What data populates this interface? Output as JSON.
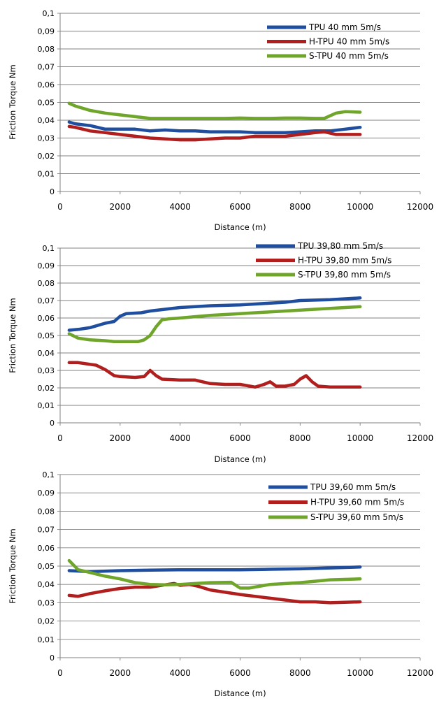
{
  "chart_data": [
    {
      "type": "line",
      "xlabel": "Distance (m)",
      "ylabel": "Friction Torque Nm",
      "xlim": [
        0,
        12000
      ],
      "ylim": [
        0,
        0.1
      ],
      "xticks": [
        0,
        2000,
        4000,
        6000,
        8000,
        10000,
        12000
      ],
      "xtick_labels": [
        "0",
        "2000",
        "4000",
        "6000",
        "8000",
        "10000",
        "12000"
      ],
      "yticks": [
        0,
        0.01,
        0.02,
        0.03,
        0.04,
        0.05,
        0.06,
        0.07,
        0.08,
        0.09,
        0.1
      ],
      "ytick_labels": [
        "0",
        "0,01",
        "0,02",
        "0,03",
        "0,04",
        "0,05",
        "0,06",
        "0,07",
        "0,08",
        "0,09",
        "0,1"
      ],
      "grid": "horizontal",
      "legend": "top-right",
      "series": [
        {
          "name": "TPU 40 mm 5m/s",
          "color": "#1f4e9e",
          "x": [
            300,
            500,
            1000,
            1500,
            2000,
            2500,
            3000,
            3500,
            4000,
            4500,
            5000,
            5500,
            6000,
            6500,
            7000,
            7500,
            8000,
            8500,
            9000,
            9500,
            10000
          ],
          "y": [
            0.039,
            0.038,
            0.037,
            0.035,
            0.035,
            0.035,
            0.034,
            0.0345,
            0.034,
            0.034,
            0.0335,
            0.0335,
            0.0335,
            0.033,
            0.033,
            0.033,
            0.0335,
            0.034,
            0.034,
            0.035,
            0.036
          ]
        },
        {
          "name": "H-TPU 40 mm 5m/s",
          "color": "#b01e1e",
          "x": [
            300,
            500,
            1000,
            1500,
            2000,
            2500,
            3000,
            3500,
            4000,
            4500,
            5000,
            5500,
            6000,
            6500,
            7000,
            7500,
            8000,
            8500,
            8800,
            9200,
            9600,
            10000
          ],
          "y": [
            0.0365,
            0.036,
            0.034,
            0.033,
            0.032,
            0.031,
            0.03,
            0.0295,
            0.029,
            0.029,
            0.0295,
            0.03,
            0.03,
            0.031,
            0.031,
            0.031,
            0.032,
            0.033,
            0.0335,
            0.032,
            0.032,
            0.032
          ]
        },
        {
          "name": "S-TPU 40 mm 5m/s",
          "color": "#6fa52a",
          "x": [
            300,
            500,
            1000,
            1500,
            2000,
            2500,
            3000,
            3500,
            4000,
            4500,
            5000,
            5500,
            6000,
            6500,
            7000,
            7500,
            8000,
            8500,
            8800,
            9200,
            9500,
            10000
          ],
          "y": [
            0.0495,
            0.048,
            0.0455,
            0.044,
            0.043,
            0.042,
            0.041,
            0.041,
            0.041,
            0.041,
            0.041,
            0.041,
            0.0412,
            0.041,
            0.041,
            0.0412,
            0.0412,
            0.041,
            0.041,
            0.044,
            0.0448,
            0.0445
          ]
        }
      ]
    },
    {
      "type": "line",
      "xlabel": "Distance (m)",
      "ylabel": "Friction Torque Nm",
      "xlim": [
        0,
        12000
      ],
      "ylim": [
        0,
        0.1
      ],
      "xticks": [
        0,
        2000,
        4000,
        6000,
        8000,
        10000,
        12000
      ],
      "xtick_labels": [
        "0",
        "2000",
        "4000",
        "6000",
        "8000",
        "10000",
        "12000"
      ],
      "yticks": [
        0,
        0.01,
        0.02,
        0.03,
        0.04,
        0.05,
        0.06,
        0.07,
        0.08,
        0.09,
        0.1
      ],
      "ytick_labels": [
        "0",
        "0,01",
        "0,02",
        "0,03",
        "0,04",
        "0,05",
        "0,06",
        "0,07",
        "0,08",
        "0,09",
        "0,1"
      ],
      "grid": "horizontal",
      "legend": "top-right",
      "series": [
        {
          "name": "TPU 39,80 mm 5m/s",
          "color": "#1f4e9e",
          "x": [
            300,
            600,
            1000,
            1500,
            1800,
            2000,
            2200,
            2700,
            3000,
            3500,
            4000,
            5000,
            6000,
            7000,
            7500,
            8000,
            9000,
            10000
          ],
          "y": [
            0.053,
            0.0535,
            0.0545,
            0.057,
            0.058,
            0.061,
            0.0625,
            0.063,
            0.064,
            0.065,
            0.066,
            0.067,
            0.0675,
            0.0685,
            0.069,
            0.07,
            0.0705,
            0.0715
          ]
        },
        {
          "name": "H-TPU 39,80 mm 5m/s",
          "color": "#b01e1e",
          "x": [
            300,
            600,
            1000,
            1200,
            1500,
            1800,
            2000,
            2500,
            2800,
            3000,
            3200,
            3400,
            4000,
            4500,
            5000,
            5500,
            6000,
            6500,
            6800,
            7000,
            7200,
            7500,
            7800,
            8000,
            8200,
            8400,
            8600,
            9000,
            9500,
            10000
          ],
          "y": [
            0.0345,
            0.0345,
            0.0335,
            0.033,
            0.0305,
            0.027,
            0.0265,
            0.026,
            0.0265,
            0.03,
            0.027,
            0.025,
            0.0245,
            0.0245,
            0.0225,
            0.022,
            0.022,
            0.0205,
            0.022,
            0.0235,
            0.021,
            0.021,
            0.022,
            0.025,
            0.027,
            0.0235,
            0.021,
            0.0205,
            0.0205,
            0.0205
          ]
        },
        {
          "name": "S-TPU 39,80 mm 5m/s",
          "color": "#6fa52a",
          "x": [
            300,
            600,
            1000,
            1500,
            1800,
            2000,
            2400,
            2600,
            2800,
            3000,
            3200,
            3400,
            3600,
            4000,
            5000,
            6000,
            7000,
            8000,
            9000,
            10000
          ],
          "y": [
            0.051,
            0.0485,
            0.0475,
            0.047,
            0.0465,
            0.0465,
            0.0465,
            0.0465,
            0.0475,
            0.05,
            0.055,
            0.059,
            0.0595,
            0.06,
            0.0615,
            0.0625,
            0.0635,
            0.0645,
            0.0655,
            0.0665
          ]
        }
      ]
    },
    {
      "type": "line",
      "xlabel": "Distance (m)",
      "ylabel": "Friction Torque Nm",
      "xlim": [
        0,
        12000
      ],
      "ylim": [
        0,
        0.1
      ],
      "xticks": [
        0,
        2000,
        4000,
        6000,
        8000,
        10000,
        12000
      ],
      "xtick_labels": [
        "0",
        "2000",
        "4000",
        "6000",
        "8000",
        "10000",
        "12000"
      ],
      "yticks": [
        0,
        0.01,
        0.02,
        0.03,
        0.04,
        0.05,
        0.06,
        0.07,
        0.08,
        0.09,
        0.1
      ],
      "ytick_labels": [
        "0",
        "0,01",
        "0,02",
        "0,03",
        "0,04",
        "0,05",
        "0,06",
        "0,07",
        "0,08",
        "0,09",
        "0,1"
      ],
      "grid": "horizontal",
      "legend": "top-right",
      "series": [
        {
          "name": "TPU 39,60 mm 5m/s",
          "color": "#1f4e9e",
          "x": [
            300,
            1000,
            2000,
            3000,
            4000,
            5000,
            6000,
            7000,
            8000,
            9000,
            10000
          ],
          "y": [
            0.0475,
            0.047,
            0.0475,
            0.0478,
            0.048,
            0.048,
            0.048,
            0.0483,
            0.0485,
            0.049,
            0.0495
          ]
        },
        {
          "name": "H-TPU 39,60 mm 5m/s",
          "color": "#b01e1e",
          "x": [
            300,
            600,
            1000,
            1500,
            2000,
            2500,
            3000,
            3500,
            3800,
            4000,
            4300,
            4600,
            5000,
            6000,
            7000,
            8000,
            8500,
            9000,
            10000
          ],
          "y": [
            0.034,
            0.0335,
            0.035,
            0.0365,
            0.0378,
            0.0385,
            0.0385,
            0.0398,
            0.0405,
            0.0395,
            0.04,
            0.039,
            0.037,
            0.0345,
            0.0325,
            0.0305,
            0.0305,
            0.03,
            0.0305
          ]
        },
        {
          "name": "S-TPU 39,60 mm 5m/s",
          "color": "#6fa52a",
          "x": [
            300,
            600,
            1000,
            1500,
            2000,
            2500,
            3000,
            3500,
            4000,
            4500,
            5000,
            5700,
            6000,
            6300,
            7000,
            8000,
            9000,
            10000
          ],
          "y": [
            0.053,
            0.048,
            0.0465,
            0.0445,
            0.043,
            0.041,
            0.04,
            0.0398,
            0.04,
            0.0405,
            0.041,
            0.0412,
            0.038,
            0.038,
            0.04,
            0.041,
            0.0425,
            0.043
          ]
        }
      ]
    }
  ]
}
